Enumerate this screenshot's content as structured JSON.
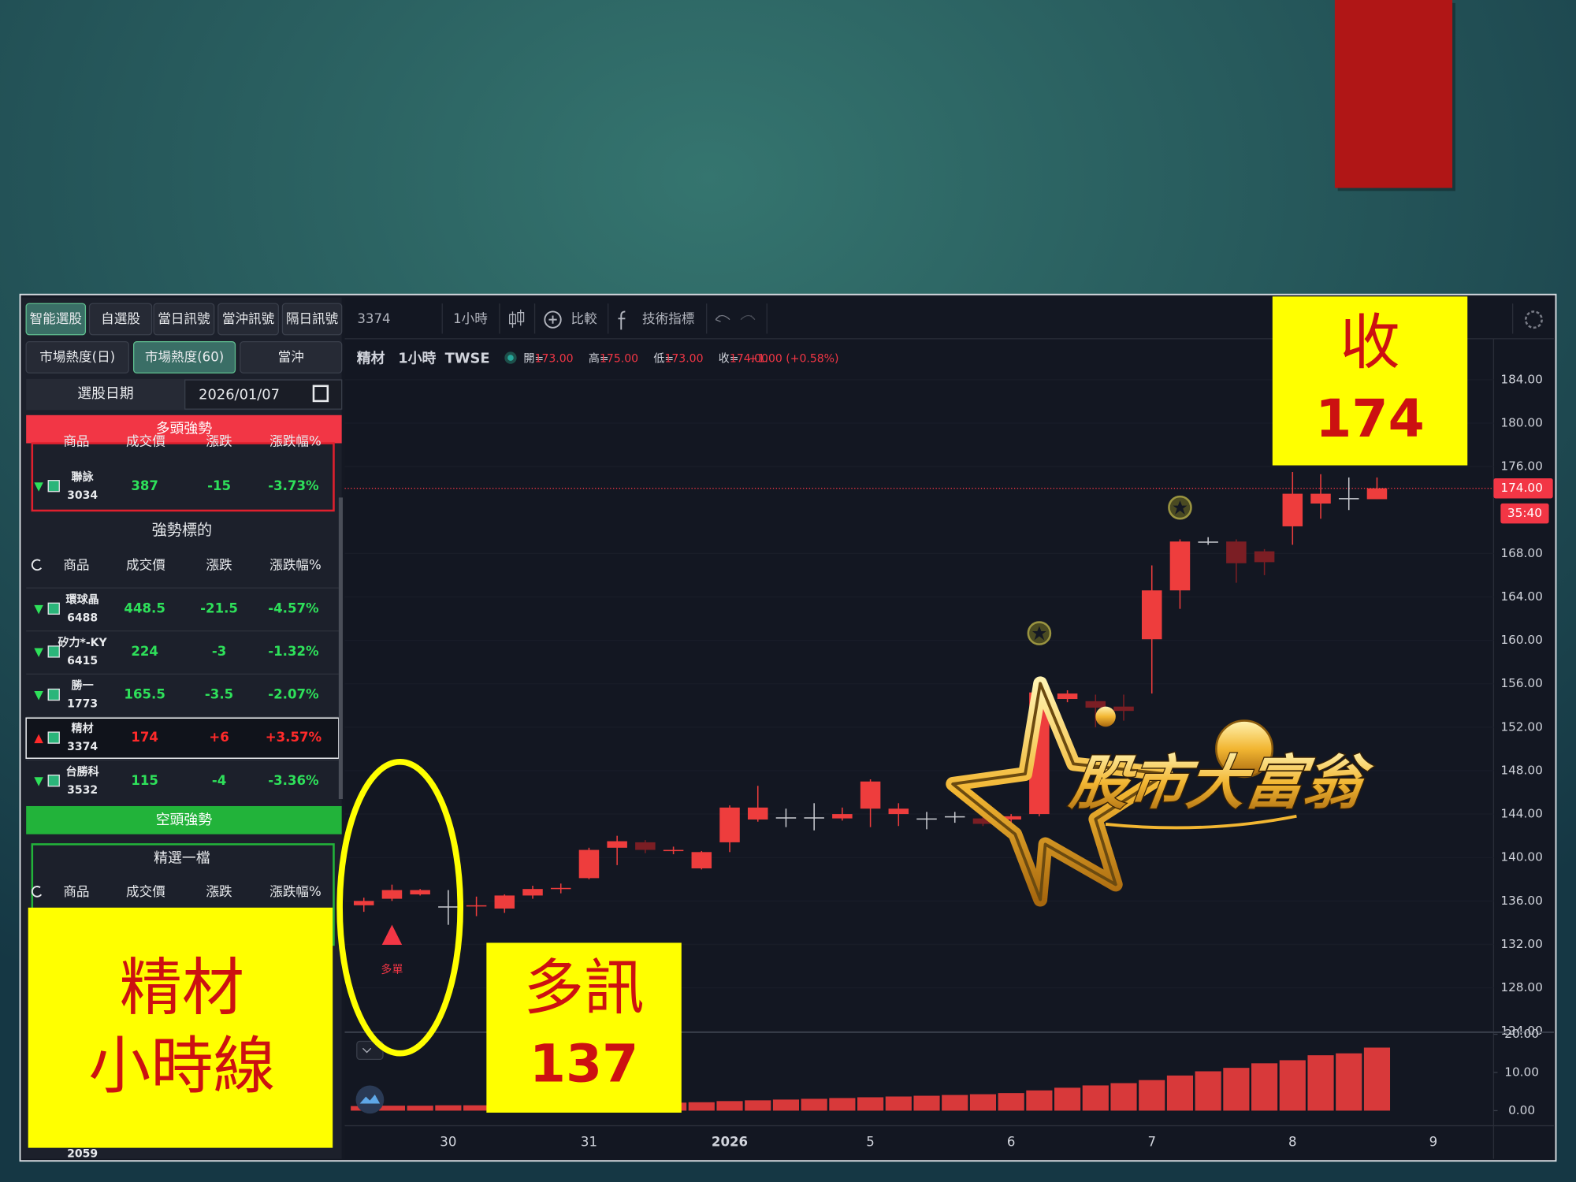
{
  "toolbar": {
    "symbol_code": "3374",
    "interval": "1小時",
    "compare": "比較",
    "indicators": "技術指標"
  },
  "sidebar": {
    "tabs": [
      "智能選股",
      "自選股",
      "當日訊號",
      "當沖訊號",
      "隔日訊號"
    ],
    "subtabs": [
      "市場熱度(日)",
      "市場熱度(60)",
      "當沖"
    ],
    "date_label": "選股日期",
    "date": "2026/01/07",
    "bull": {
      "title": "多頭強勢",
      "headers": [
        "商品",
        "成交價",
        "漲跌",
        "漲跌幅%"
      ],
      "rows": [
        [
          "聯詠",
          "3034",
          "387",
          "-15",
          "-3.73%"
        ]
      ]
    },
    "strong": {
      "title": "強勢標的",
      "headers": [
        "商品",
        "成交價",
        "漲跌",
        "漲跌幅%"
      ],
      "rows": [
        [
          "環球晶",
          "6488",
          "448.5",
          "-21.5",
          "-4.57%"
        ],
        [
          "矽力*-KY",
          "6415",
          "224",
          "-3",
          "-1.32%"
        ],
        [
          "勝一",
          "1773",
          "165.5",
          "-3.5",
          "-2.07%"
        ],
        [
          "精材",
          "3374",
          "174",
          "+6",
          "+3.57%"
        ],
        [
          "台勝科",
          "3532",
          "115",
          "-4",
          "-3.36%"
        ]
      ]
    },
    "bear": {
      "title": "空頭強勢",
      "subtitle": "精選一檔",
      "headers": [
        "商品",
        "成交價",
        "漲跌",
        "漲跌幅%"
      ]
    },
    "partial_row_code": "2059"
  },
  "chart_data": {
    "type": "candlestick",
    "symbol": "精材",
    "interval": "1小時",
    "exchange": "TWSE",
    "legend": [
      [
        "開=",
        "173.00"
      ],
      [
        "高=",
        "175.00"
      ],
      [
        "低=",
        "173.00"
      ],
      [
        "收=",
        "174.00"
      ]
    ],
    "change": "+1.00 (+0.58%)",
    "categories": [
      null,
      null,
      null,
      "30",
      null,
      null,
      null,
      null,
      "31",
      null,
      null,
      null,
      null,
      "2026",
      null,
      null,
      null,
      null,
      "5",
      null,
      null,
      null,
      null,
      "6",
      null,
      null,
      null,
      null,
      "7",
      null,
      null,
      null,
      null,
      "8",
      null,
      null,
      null,
      null,
      "9"
    ],
    "open": [
      135.6,
      136.2,
      136.6,
      135.5,
      135.5,
      135.3,
      136.5,
      137.1,
      138.1,
      140.9,
      141.4,
      140.6,
      139.0,
      141.4,
      143.5,
      143.7,
      143.7,
      143.6,
      144.5,
      144.0,
      143.6,
      143.8,
      143.6,
      143.5,
      144.0,
      154.6,
      154.4,
      153.9,
      160.1,
      164.6,
      169.1,
      169.1,
      168.2,
      170.5,
      172.6,
      173.1,
      173.0,
      null,
      null
    ],
    "high": [
      136.3,
      137.5,
      137.1,
      137.0,
      136.4,
      136.6,
      137.4,
      137.6,
      140.9,
      142.0,
      141.6,
      141.0,
      140.6,
      144.8,
      146.6,
      144.5,
      145.0,
      144.6,
      147.2,
      145.0,
      144.2,
      144.2,
      144.0,
      144.0,
      156.5,
      155.4,
      155.0,
      155.0,
      166.9,
      169.3,
      169.5,
      169.3,
      168.4,
      175.5,
      175.3,
      175.0,
      175.0,
      null,
      null
    ],
    "low": [
      135.0,
      136.0,
      136.5,
      133.8,
      134.6,
      134.9,
      136.2,
      136.7,
      138.0,
      139.3,
      140.4,
      140.3,
      138.9,
      140.5,
      143.3,
      142.8,
      142.5,
      143.4,
      142.8,
      142.9,
      142.6,
      143.2,
      142.9,
      143.2,
      143.8,
      154.3,
      152.0,
      152.6,
      155.1,
      162.9,
      168.8,
      165.3,
      166.0,
      168.8,
      171.2,
      172.0,
      173.0,
      null,
      null
    ],
    "close": [
      136.0,
      137.0,
      137.0,
      135.5,
      135.6,
      136.5,
      137.1,
      137.2,
      140.7,
      141.5,
      140.7,
      140.7,
      140.5,
      144.6,
      144.6,
      143.7,
      143.7,
      144.0,
      147.0,
      144.5,
      143.6,
      143.8,
      143.1,
      143.8,
      155.2,
      155.1,
      153.8,
      153.5,
      164.6,
      169.1,
      169.1,
      167.1,
      167.2,
      173.5,
      173.5,
      173.1,
      174.0,
      null,
      null
    ],
    "volume": [
      1.2,
      1.3,
      1.3,
      1.4,
      1.4,
      1.5,
      1.5,
      1.6,
      1.8,
      1.9,
      2.0,
      2.1,
      2.2,
      2.5,
      2.7,
      2.9,
      3.1,
      3.3,
      3.5,
      3.7,
      3.9,
      4.1,
      4.3,
      4.6,
      5.3,
      6.0,
      6.6,
      7.2,
      8.0,
      9.2,
      10.3,
      11.2,
      12.4,
      13.2,
      14.5,
      15.0,
      16.5,
      null,
      null
    ],
    "up_color": "#ee3d3d",
    "down_color": "#7b1e24",
    "volume_color": "#ee3d3d",
    "ylim": [
      124,
      187.5
    ],
    "yticks": [
      {
        "value": 184,
        "label": "184.00"
      },
      {
        "value": 180,
        "label": "180.00"
      },
      {
        "value": 176,
        "label": "176.00"
      },
      {
        "value": 168,
        "label": "168.00"
      },
      {
        "value": 164,
        "label": "164.00"
      },
      {
        "value": 160,
        "label": "160.00"
      },
      {
        "value": 156,
        "label": "156.00"
      },
      {
        "value": 152,
        "label": "152.00"
      },
      {
        "value": 148,
        "label": "148.00"
      },
      {
        "value": 144,
        "label": "144.00"
      },
      {
        "value": 140,
        "label": "140.00"
      },
      {
        "value": 136,
        "label": "136.00"
      },
      {
        "value": 132,
        "label": "132.00"
      },
      {
        "value": 128,
        "label": "128.00"
      },
      {
        "value": 124,
        "label": "124.00"
      }
    ],
    "volume_ylim": [
      0,
      20
    ],
    "volume_yticks": [
      {
        "value": 20,
        "label": "20.00"
      },
      {
        "value": 10,
        "label": "10.00"
      },
      {
        "value": 0,
        "label": "0.00"
      }
    ],
    "last_price": {
      "value": 174,
      "label": "174.00"
    },
    "countdown": "35:40",
    "grid": true
  },
  "annotations": {
    "signal_label": "多單",
    "logo": "股市大富翁",
    "close_box": {
      "title": "收",
      "value": "174"
    },
    "name_box": {
      "line1": "精材",
      "line2": "小時線"
    },
    "signal_box": {
      "title": "多訊",
      "value": "137"
    }
  }
}
